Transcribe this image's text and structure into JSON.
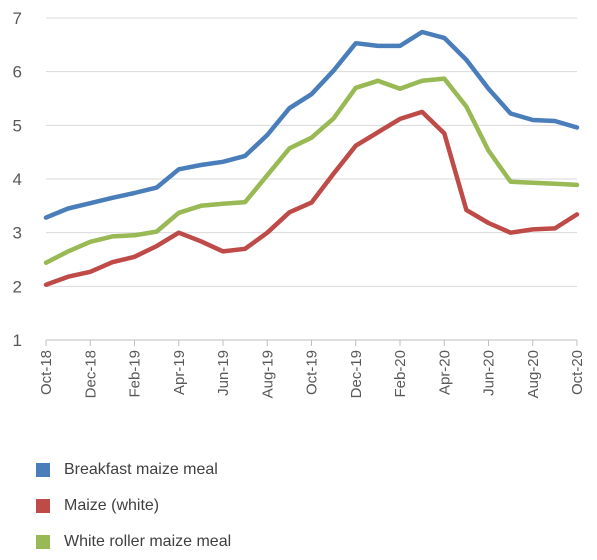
{
  "chart_data": {
    "type": "line",
    "title": "",
    "xlabel": "",
    "ylabel": "",
    "ylim": [
      1,
      7
    ],
    "yticks": [
      "1",
      "2",
      "3",
      "4",
      "5",
      "6",
      "7"
    ],
    "grid": "horizontal",
    "legend_position": "bottom",
    "x": [
      "Oct-18",
      "Nov-18",
      "Dec-18",
      "Jan-19",
      "Feb-19",
      "Mar-19",
      "Apr-19",
      "May-19",
      "Jun-19",
      "Jul-19",
      "Aug-19",
      "Sep-19",
      "Oct-19",
      "Nov-19",
      "Dec-19",
      "Jan-20",
      "Feb-20",
      "Mar-20",
      "Apr-20",
      "May-20",
      "Jun-20",
      "Jul-20",
      "Aug-20",
      "Sep-20",
      "Oct-20"
    ],
    "xtick_labels": [
      "Oct-18",
      "Dec-18",
      "Feb-19",
      "Apr-19",
      "Jun-19",
      "Aug-19",
      "Oct-19",
      "Dec-19",
      "Feb-20",
      "Apr-20",
      "Jun-20",
      "Aug-20",
      "Oct-20"
    ],
    "series": [
      {
        "name": "Breakfast maize meal",
        "color": "#4a7ebb",
        "values": [
          3.28,
          3.45,
          3.55,
          3.65,
          3.74,
          3.84,
          4.18,
          4.26,
          4.32,
          4.43,
          4.82,
          5.32,
          5.58,
          6.02,
          6.53,
          6.48,
          6.48,
          6.74,
          6.63,
          6.22,
          5.68,
          5.22,
          5.1,
          5.08,
          4.96
        ]
      },
      {
        "name": "Maize (white)",
        "color": "#be4b48",
        "values": [
          2.03,
          2.18,
          2.27,
          2.45,
          2.55,
          2.75,
          3.0,
          2.84,
          2.65,
          2.7,
          3.0,
          3.38,
          3.56,
          4.1,
          4.62,
          4.87,
          5.12,
          5.25,
          4.85,
          3.42,
          3.18,
          3.0,
          3.06,
          3.08,
          3.34
        ]
      },
      {
        "name": "White roller maize meal",
        "color": "#98b954",
        "values": [
          2.44,
          2.65,
          2.83,
          2.93,
          2.95,
          3.02,
          3.37,
          3.5,
          3.54,
          3.57,
          4.07,
          4.57,
          4.77,
          5.13,
          5.7,
          5.83,
          5.68,
          5.83,
          5.87,
          5.35,
          4.53,
          3.95,
          3.93,
          3.91,
          3.89
        ]
      }
    ]
  }
}
